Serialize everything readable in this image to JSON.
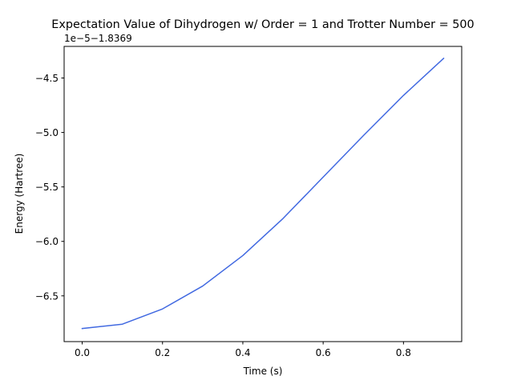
{
  "chart_data": {
    "type": "line",
    "title": "Expectation Value of Dihydrogen w/ Order = 1 and Trotter Number = 500",
    "xlabel": "Time (s)",
    "ylabel": "Energy (Hartree)",
    "y_offset_label": "1e−5−1.8369",
    "xlim": [
      -0.045,
      0.945
    ],
    "ylim": [
      -6.92,
      -4.21
    ],
    "x_ticks": [
      0.0,
      0.2,
      0.4,
      0.6,
      0.8
    ],
    "x_tick_labels": [
      "0.0",
      "0.2",
      "0.4",
      "0.6",
      "0.8"
    ],
    "y_ticks": [
      -6.5,
      -6.0,
      -5.5,
      -5.0,
      -4.5
    ],
    "y_tick_labels": [
      "−6.5",
      "−6.0",
      "−5.5",
      "−5.0",
      "−4.5"
    ],
    "grid": false,
    "series": [
      {
        "color": "#4169e1",
        "x": [
          0.0,
          0.1,
          0.2,
          0.3,
          0.4,
          0.5,
          0.6,
          0.7,
          0.8,
          0.9
        ],
        "y": [
          -6.8,
          -6.76,
          -6.62,
          -6.41,
          -6.13,
          -5.79,
          -5.41,
          -5.03,
          -4.66,
          -4.32
        ]
      }
    ]
  }
}
